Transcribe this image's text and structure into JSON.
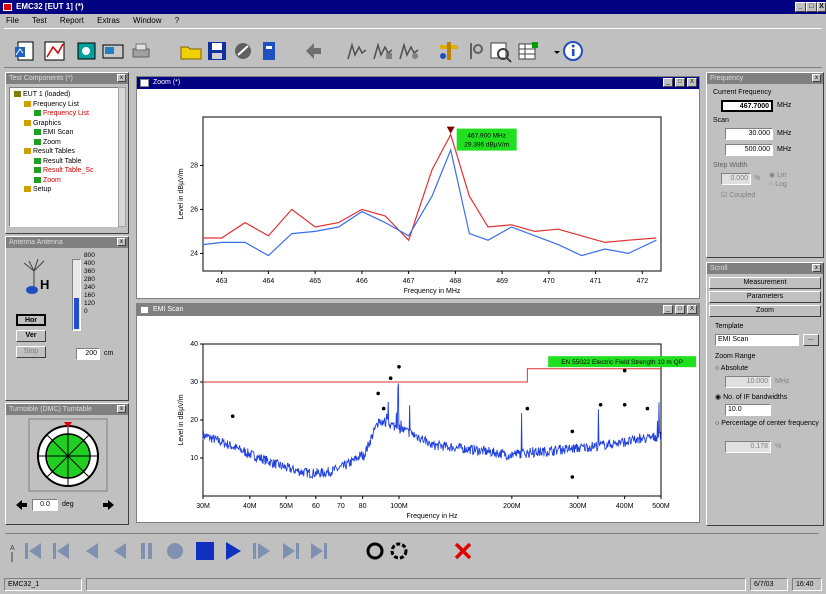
{
  "window": {
    "title": "EMC32 [EUT 1] (*)",
    "controls": [
      "_",
      "□",
      "X"
    ]
  },
  "menu": [
    "File",
    "Test",
    "Report",
    "Extras",
    "Window",
    "?"
  ],
  "test_components": {
    "title": "Test Components (*)",
    "tree": [
      {
        "label": "EUT 1 (loaded)",
        "level": 0,
        "red": false
      },
      {
        "label": "Frequency List",
        "level": 1,
        "red": false
      },
      {
        "label": "Frequency List",
        "level": 2,
        "red": true
      },
      {
        "label": "Graphics",
        "level": 1,
        "red": false
      },
      {
        "label": "EMI Scan",
        "level": 2,
        "red": false
      },
      {
        "label": "Zoom",
        "level": 2,
        "red": false
      },
      {
        "label": "Result Tables",
        "level": 1,
        "red": false
      },
      {
        "label": "Result Table",
        "level": 2,
        "red": false
      },
      {
        "label": "Result Table_Sc",
        "level": 2,
        "red": true
      },
      {
        "label": "Zoom",
        "level": 2,
        "red": true
      },
      {
        "label": "Setup",
        "level": 1,
        "red": false
      }
    ]
  },
  "antenna": {
    "title": "Antenna Antenna",
    "polarization": "H",
    "scale": [
      "400",
      "360",
      "280",
      "240",
      "160",
      "120",
      "0"
    ],
    "scale_top": "800",
    "btn_hor": "Hor",
    "btn_ver": "Ver",
    "btn_stop": "Stop",
    "height_value": "200",
    "height_unit": "cm",
    "level": 0.45
  },
  "turntable": {
    "title": "Turntable (DMC) Turntable",
    "angle_value": "0.0",
    "angle_unit": "deg"
  },
  "zoom_window": {
    "title": "Zoom (*)",
    "controls": [
      "_",
      "□",
      "X"
    ],
    "badge_line1": "467.900 MHz",
    "badge_line2": "29.396 dBµV/m"
  },
  "emi_window": {
    "title": "EMI Scan",
    "controls": [
      "_",
      "□",
      "X"
    ],
    "limit_label": "EN 55022 Electric Field Strength 10 m QP"
  },
  "chart_data": [
    {
      "type": "line",
      "title": "",
      "xlabel": "Frequency in MHz",
      "ylabel": "Level in dBµV/m",
      "x": [
        462.6,
        463,
        463.5,
        464,
        464.5,
        465,
        465.5,
        466,
        466.5,
        467,
        467.5,
        467.9,
        468.3,
        468.7,
        469.2,
        469.7,
        470.2,
        470.7,
        471.2,
        471.7,
        472.3
      ],
      "xlim": [
        462.6,
        472.4
      ],
      "xticks": [
        463,
        464,
        465,
        466,
        467,
        468,
        469,
        470,
        471,
        472
      ],
      "ylim": [
        23.2,
        30.2
      ],
      "yticks": [
        24,
        26,
        28
      ],
      "series": [
        {
          "color": "#e03030",
          "values": [
            24.7,
            24.7,
            25.4,
            24.8,
            26.0,
            25.2,
            25.4,
            26.0,
            25.7,
            24.6,
            27.8,
            29.4,
            26.6,
            25.2,
            25.3,
            25.0,
            25.1,
            24.8,
            24.5,
            24.6,
            24.7
          ]
        },
        {
          "color": "#3a6ee8",
          "values": [
            24.4,
            24.5,
            24.5,
            23.9,
            24.9,
            25.0,
            25.2,
            25.9,
            25.4,
            24.8,
            26.6,
            28.7,
            24.9,
            24.6,
            25.2,
            24.8,
            24.4,
            23.9,
            24.2,
            24.0,
            24.6
          ]
        }
      ]
    },
    {
      "type": "line",
      "title": "",
      "xlabel": "Frequency in Hz",
      "ylabel": "Level in dBµV/m",
      "xscale": "log",
      "xlim": [
        30,
        500
      ],
      "xticks": [
        30,
        40,
        50,
        60,
        70,
        80,
        100,
        200,
        300,
        400,
        500
      ],
      "xticklabels": [
        "30M",
        "40M",
        "50M",
        "60",
        "70",
        "80",
        "100M",
        "200M",
        "300M",
        "400M",
        "500M"
      ],
      "ylim": [
        0,
        40
      ],
      "yticks": [
        10,
        20,
        30,
        40
      ],
      "limit_line": {
        "value": 30,
        "x_end": 220,
        "step_to": 33.5
      },
      "series": [
        {
          "color": "#2040e0",
          "name": ""
        }
      ],
      "markers": [
        [
          36,
          21
        ],
        [
          88,
          27
        ],
        [
          91,
          23
        ],
        [
          95,
          31
        ],
        [
          100,
          34
        ],
        [
          220,
          23
        ],
        [
          290,
          17
        ],
        [
          290,
          5
        ],
        [
          345,
          24
        ],
        [
          400,
          24
        ],
        [
          400,
          33
        ],
        [
          460,
          23
        ]
      ]
    }
  ],
  "frequency_panel": {
    "title": "Frequency",
    "current_label": "Current Frequency",
    "current_value": "467.7000",
    "unit": "MHz",
    "scan_label": "Scan",
    "scan_start": "30.000",
    "scan_stop": "500.000",
    "step_label": "Step Width",
    "step_value": "0.000",
    "step_unit": "%",
    "opt_lin": "Lin",
    "opt_log": "Log",
    "coupled_label": "Coupled"
  },
  "scroll_panel": {
    "title": "Scroll",
    "tabs": [
      "Measurement",
      "Parameters",
      "Zoom"
    ],
    "template_label": "Template",
    "template_value": "EMI Scan",
    "browse": "...",
    "zoom_range_label": "Zoom Range",
    "opt_absolute": "Absolute",
    "absolute_value": "10.000",
    "absolute_unit": "MHz",
    "opt_no_if": "No. of IF bandwidths",
    "no_if_value": "10.0",
    "opt_percentage": "Percentage of center frequency",
    "percentage_value": "0.178",
    "percentage_unit": "%"
  },
  "status": {
    "left": "EMC32_1",
    "date": "6/7/03",
    "time": "16:40"
  }
}
